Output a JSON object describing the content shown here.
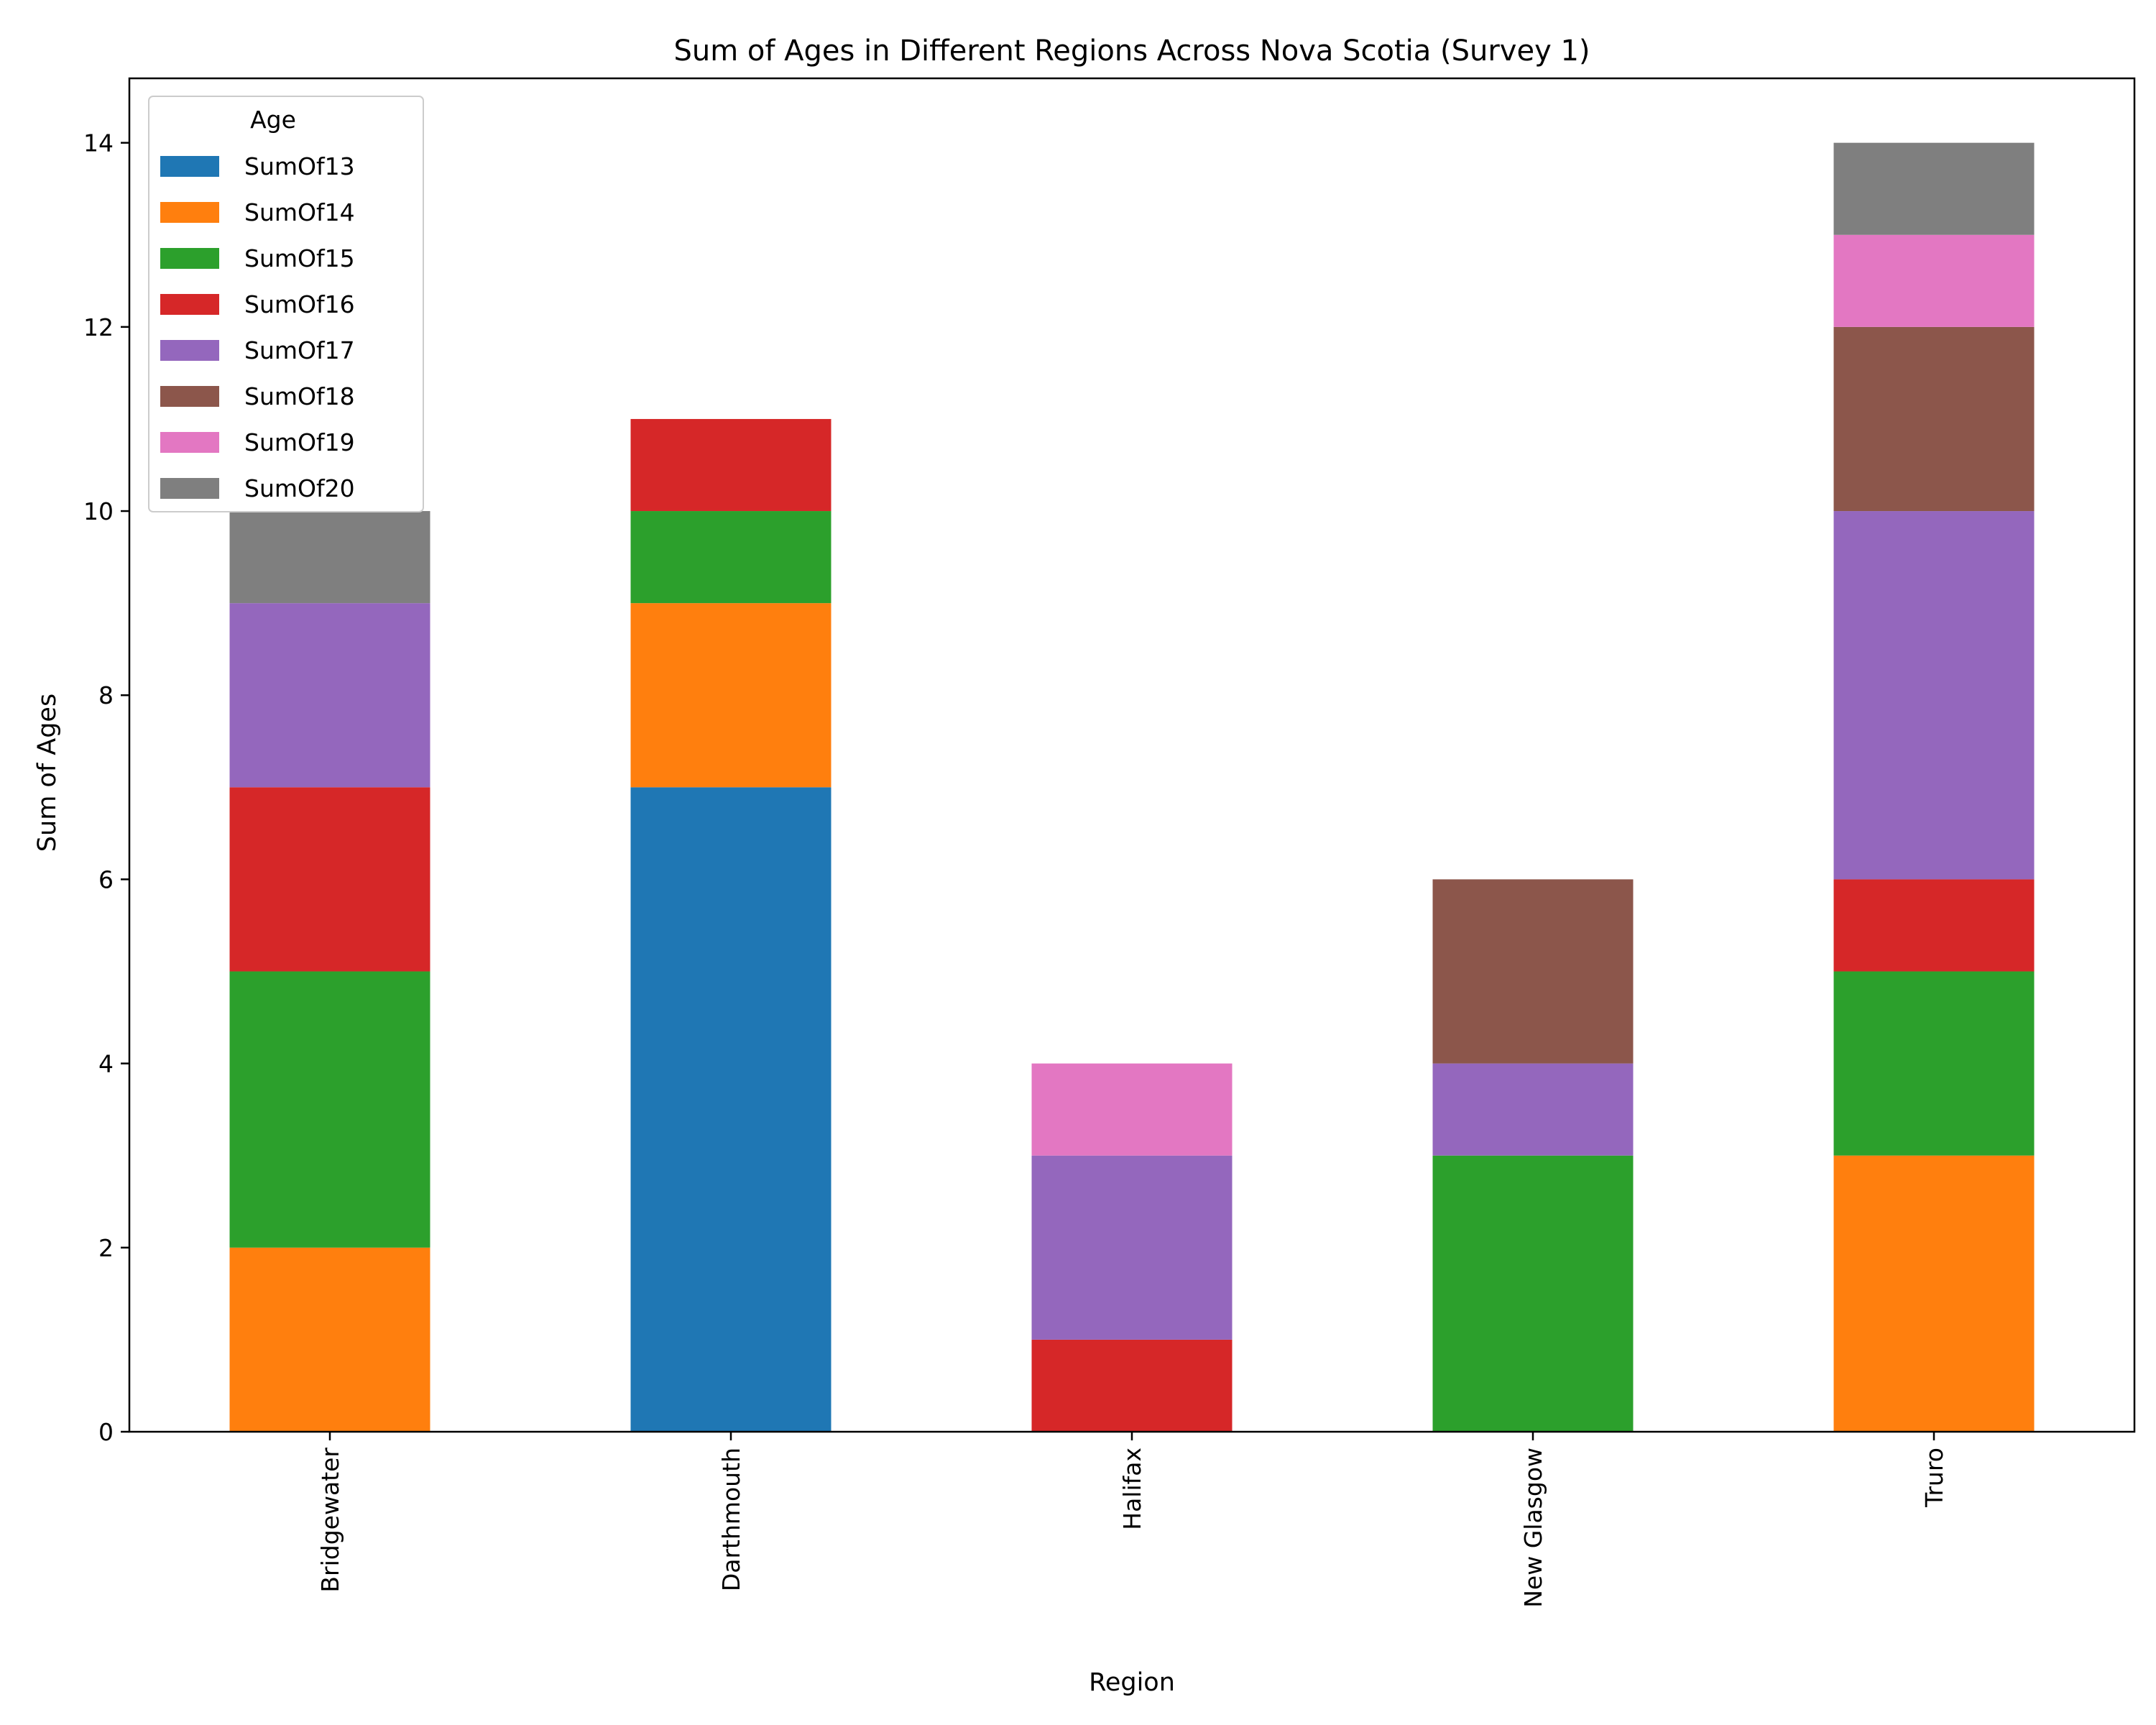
{
  "chart_data": {
    "type": "bar",
    "stacked": true,
    "title": "Sum of Ages in Different Regions Across Nova Scotia (Survey 1)",
    "xlabel": "Region",
    "ylabel": "Sum of Ages",
    "categories": [
      "Bridgewater",
      "Darthmouth",
      "Halifax",
      "New Glasgow",
      "Truro"
    ],
    "ylim": [
      0,
      14.7
    ],
    "yticks": [
      0,
      2,
      4,
      6,
      8,
      10,
      12,
      14
    ],
    "ytick_labels": [
      "0",
      "2",
      "4",
      "6",
      "8",
      "10",
      "12",
      "14"
    ],
    "grid": false,
    "legend": {
      "title": "Age",
      "position": "top-left"
    },
    "series": [
      {
        "name": "SumOf13",
        "color": "#1f77b4",
        "values": [
          0,
          7,
          0,
          0,
          0
        ]
      },
      {
        "name": "SumOf14",
        "color": "#ff7f0e",
        "values": [
          2,
          2,
          0,
          0,
          3
        ]
      },
      {
        "name": "SumOf15",
        "color": "#2ca02c",
        "values": [
          3,
          1,
          0,
          3,
          2
        ]
      },
      {
        "name": "SumOf16",
        "color": "#d62728",
        "values": [
          2,
          1,
          1,
          0,
          1
        ]
      },
      {
        "name": "SumOf17",
        "color": "#9467bd",
        "values": [
          2,
          0,
          2,
          1,
          4
        ]
      },
      {
        "name": "SumOf18",
        "color": "#8c564b",
        "values": [
          0,
          0,
          0,
          2,
          2
        ]
      },
      {
        "name": "SumOf19",
        "color": "#e377c2",
        "values": [
          0,
          0,
          1,
          0,
          1
        ]
      },
      {
        "name": "SumOf20",
        "color": "#7f7f7f",
        "values": [
          1,
          0,
          0,
          0,
          1
        ]
      }
    ]
  }
}
